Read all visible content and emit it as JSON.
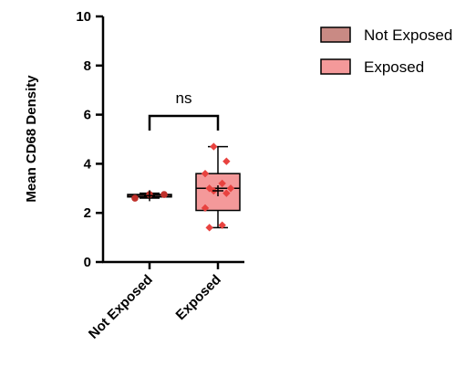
{
  "chart_data": {
    "type": "box",
    "ylabel": "Mean CD68 Density",
    "xlabel": "",
    "ylim": [
      0,
      10
    ],
    "yticks": [
      "0",
      "2",
      "4",
      "6",
      "8",
      "10"
    ],
    "categories": [
      "Not Exposed",
      "Exposed"
    ],
    "legend_position": "top-right",
    "legend": [
      {
        "label": "Not Exposed",
        "color": "#c98a84"
      },
      {
        "label": "Exposed",
        "color": "#f4999a"
      }
    ],
    "groups": [
      {
        "name": "Not Exposed",
        "box": {
          "min": 2.6,
          "q1": 2.65,
          "median": 2.72,
          "q3": 2.75,
          "max": 2.8,
          "mean": 2.7
        },
        "points": [
          2.6,
          2.75,
          2.75
        ],
        "box_color": "#c98a84",
        "point_color": "#c0302a",
        "marker": "circle"
      },
      {
        "name": "Exposed",
        "box": {
          "min": 1.4,
          "q1": 2.1,
          "median": 3.0,
          "q3": 3.6,
          "max": 4.7,
          "mean": 2.9
        },
        "points": [
          4.7,
          4.1,
          3.6,
          3.2,
          3.0,
          3.0,
          2.9,
          2.8,
          2.2,
          1.5,
          1.4
        ],
        "box_color": "#f4999a",
        "point_color": "#e8423f",
        "marker": "diamond"
      }
    ],
    "annotations": [
      {
        "text": "ns",
        "between": [
          "Not Exposed",
          "Exposed"
        ]
      }
    ]
  }
}
